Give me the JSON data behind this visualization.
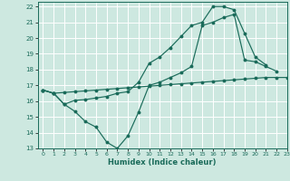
{
  "bg_color": "#cde8e0",
  "grid_color": "#ffffff",
  "line_color": "#1a6b5a",
  "xlabel": "Humidex (Indice chaleur)",
  "xlim": [
    -0.5,
    23
  ],
  "ylim": [
    13,
    22.3
  ],
  "xticks": [
    0,
    1,
    2,
    3,
    4,
    5,
    6,
    7,
    8,
    9,
    10,
    11,
    12,
    13,
    14,
    15,
    16,
    17,
    18,
    19,
    20,
    21,
    22,
    23
  ],
  "yticks": [
    13,
    14,
    15,
    16,
    17,
    18,
    19,
    20,
    21,
    22
  ],
  "line1_x": [
    0,
    1,
    2,
    3,
    4,
    5,
    6,
    7,
    8,
    9,
    10,
    11,
    12,
    13,
    14,
    15,
    16,
    17,
    18,
    19,
    20,
    21,
    22,
    23
  ],
  "line1_y": [
    16.7,
    16.5,
    16.55,
    16.6,
    16.65,
    16.7,
    16.75,
    16.8,
    16.85,
    16.9,
    16.95,
    17.0,
    17.05,
    17.1,
    17.15,
    17.2,
    17.25,
    17.3,
    17.35,
    17.4,
    17.45,
    17.5,
    17.5,
    17.5
  ],
  "line2_x": [
    0,
    1,
    2,
    3,
    4,
    5,
    6,
    7,
    8,
    9,
    10,
    11,
    12,
    13,
    14,
    15,
    16,
    17,
    18,
    19,
    20,
    21,
    22
  ],
  "line2_y": [
    16.7,
    16.5,
    15.8,
    15.35,
    14.7,
    14.35,
    13.4,
    13.0,
    13.8,
    15.3,
    17.0,
    17.2,
    17.5,
    17.8,
    18.2,
    20.8,
    21.0,
    21.3,
    21.5,
    18.6,
    18.5,
    18.2,
    17.9
  ],
  "line3_x": [
    0,
    1,
    2,
    3,
    4,
    5,
    6,
    7,
    8,
    9,
    10,
    11,
    12,
    13,
    14,
    15,
    16,
    17,
    18,
    19,
    20,
    21
  ],
  "line3_y": [
    16.7,
    16.5,
    15.8,
    16.05,
    16.1,
    16.2,
    16.3,
    16.5,
    16.6,
    17.2,
    18.4,
    18.8,
    19.4,
    20.1,
    20.8,
    21.0,
    22.0,
    22.0,
    21.8,
    20.3,
    18.8,
    18.3
  ]
}
